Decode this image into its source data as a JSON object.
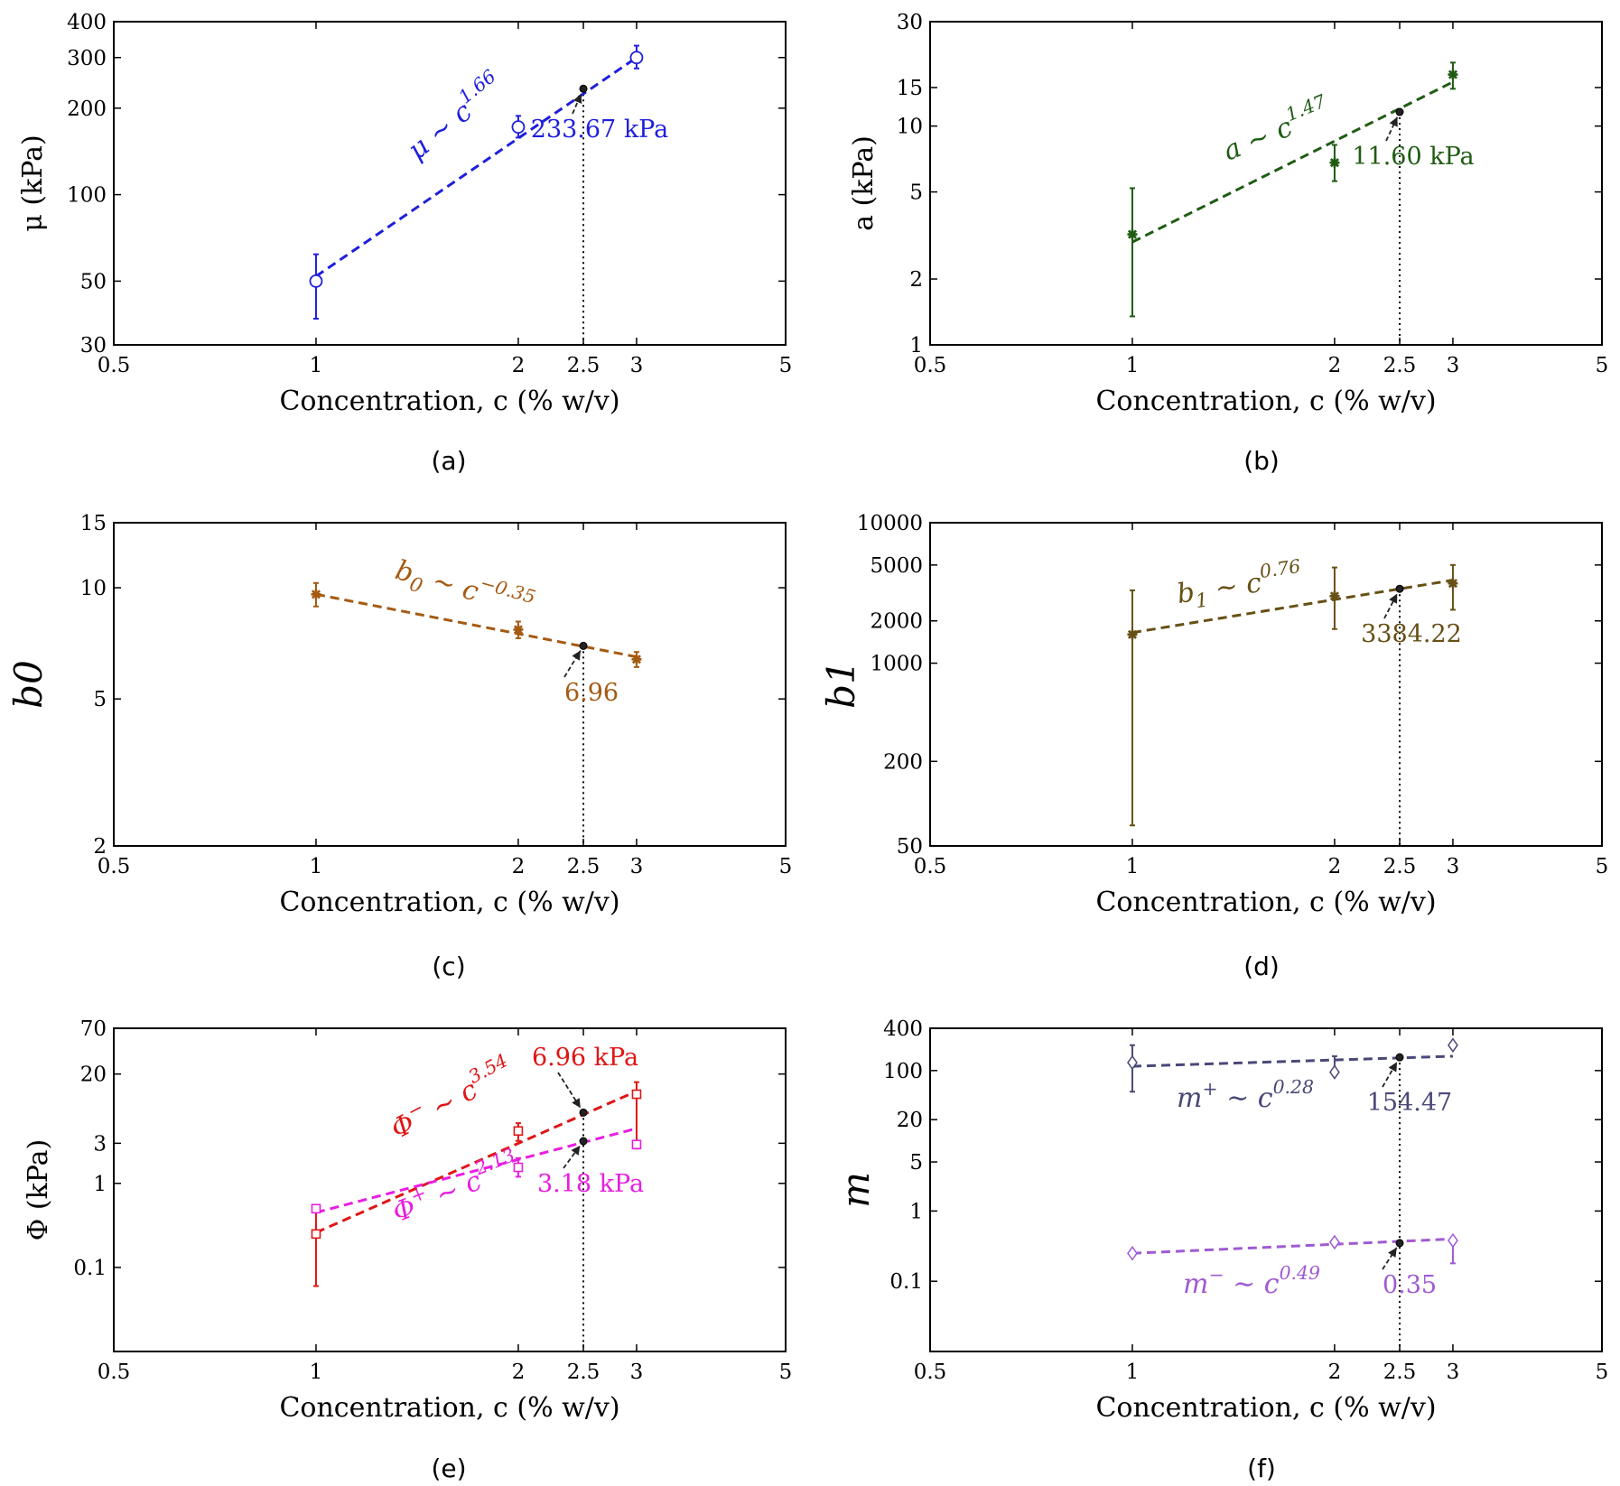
{
  "chart_data": [
    {
      "id": "a",
      "type": "scatter",
      "scale": "loglog",
      "caption": "(a)",
      "xlabel": "Concentration, c (% w/v)",
      "ylabel": "μ (kPa)",
      "xlim": [
        0.5,
        5
      ],
      "ylim": [
        30,
        400
      ],
      "xticks": [
        0.5,
        1,
        2,
        2.5,
        3,
        5
      ],
      "xtick_labels": [
        "0.5",
        "1",
        "2",
        "2.5",
        "3",
        "5"
      ],
      "yticks": [
        30,
        50,
        100,
        200,
        300,
        400
      ],
      "ytick_labels": [
        "30",
        "50",
        "100",
        "200",
        "300",
        "400"
      ],
      "color": "#1f1fdc",
      "series": [
        {
          "name": "μ",
          "marker": "circle",
          "points": [
            {
              "x": 1,
              "y": 50,
              "lo": 37,
              "hi": 62
            },
            {
              "x": 2,
              "y": 172,
              "lo": 158,
              "hi": 188
            },
            {
              "x": 3,
              "y": 300,
              "lo": 275,
              "hi": 330
            }
          ],
          "fit": {
            "exponent": 1.66,
            "x0": 1,
            "x1": 3,
            "y0": 52,
            "y1": 300
          },
          "fit_label": {
            "base": "μ ∼ c",
            "exp": "1.66"
          },
          "estimate": {
            "x": 2.5,
            "y": 233.67,
            "label": "233.67 kPa"
          }
        }
      ]
    },
    {
      "id": "b",
      "type": "scatter",
      "scale": "loglog",
      "caption": "(b)",
      "xlabel": "Concentration, c (% w/v)",
      "ylabel": "a (kPa)",
      "xlim": [
        0.5,
        5
      ],
      "ylim": [
        1,
        30
      ],
      "xticks": [
        0.5,
        1,
        2,
        2.5,
        3,
        5
      ],
      "xtick_labels": [
        "0.5",
        "1",
        "2",
        "2.5",
        "3",
        "5"
      ],
      "yticks": [
        1,
        2,
        5,
        10,
        15,
        30
      ],
      "ytick_labels": [
        "1",
        "2",
        "5",
        "10",
        "15",
        "30"
      ],
      "color": "#1f5c12",
      "series": [
        {
          "name": "a",
          "marker": "star",
          "points": [
            {
              "x": 1,
              "y": 3.2,
              "lo": 1.35,
              "hi": 5.2
            },
            {
              "x": 2,
              "y": 6.8,
              "lo": 5.6,
              "hi": 8.2
            },
            {
              "x": 3,
              "y": 17.2,
              "lo": 14.8,
              "hi": 19.5
            }
          ],
          "fit": {
            "exponent": 1.47,
            "x0": 1,
            "x1": 3,
            "y0": 2.95,
            "y1": 15.9
          },
          "fit_label": {
            "base": "a ∼ c",
            "exp": "1.47"
          },
          "estimate": {
            "x": 2.5,
            "y": 11.6,
            "label": "11.60 kPa"
          }
        }
      ]
    },
    {
      "id": "c",
      "type": "scatter",
      "scale": "loglog",
      "caption": "(c)",
      "xlabel": "Concentration, c (% w/v)",
      "ylabel": "b0",
      "xlim": [
        0.5,
        5
      ],
      "ylim": [
        2,
        15
      ],
      "xticks": [
        0.5,
        1,
        2,
        2.5,
        3,
        5
      ],
      "xtick_labels": [
        "0.5",
        "1",
        "2",
        "2.5",
        "3",
        "5"
      ],
      "yticks": [
        2,
        5,
        10,
        15
      ],
      "ytick_labels": [
        "2",
        "5",
        "10",
        "15"
      ],
      "color": "#a55a12",
      "series": [
        {
          "name": "b0",
          "marker": "star",
          "points": [
            {
              "x": 1,
              "y": 9.6,
              "lo": 8.9,
              "hi": 10.3
            },
            {
              "x": 2,
              "y": 7.7,
              "lo": 7.3,
              "hi": 8.1
            },
            {
              "x": 3,
              "y": 6.4,
              "lo": 6.1,
              "hi": 6.7
            }
          ],
          "fit": {
            "exponent": -0.35,
            "x0": 1,
            "x1": 3,
            "y0": 9.6,
            "y1": 6.5
          },
          "fit_label": {
            "base": "b",
            "sub": "0",
            "mid": " ∼ c",
            "exp": "−0.35"
          },
          "estimate": {
            "x": 2.5,
            "y": 6.96,
            "label": "6.96"
          }
        }
      ]
    },
    {
      "id": "d",
      "type": "scatter",
      "scale": "loglog",
      "caption": "(d)",
      "xlabel": "Concentration, c (% w/v)",
      "ylabel": "b1",
      "xlim": [
        0.5,
        5
      ],
      "ylim": [
        50,
        10000
      ],
      "xticks": [
        0.5,
        1,
        2,
        2.5,
        3,
        5
      ],
      "xtick_labels": [
        "0.5",
        "1",
        "2",
        "2.5",
        "3",
        "5"
      ],
      "yticks": [
        50,
        200,
        1000,
        2000,
        5000,
        10000
      ],
      "ytick_labels": [
        "50",
        "200",
        "1000",
        "2000",
        "5000",
        "10000"
      ],
      "color": "#665015",
      "series": [
        {
          "name": "b1",
          "marker": "star",
          "points": [
            {
              "x": 1,
              "y": 1600,
              "lo": 70,
              "hi": 3300
            },
            {
              "x": 2,
              "y": 3000,
              "lo": 1750,
              "hi": 4800
            },
            {
              "x": 3,
              "y": 3700,
              "lo": 2400,
              "hi": 5000
            }
          ],
          "fit": {
            "exponent": 0.76,
            "x0": 1,
            "x1": 3,
            "y0": 1650,
            "y1": 3900
          },
          "fit_label": {
            "base": "b",
            "sub": "1",
            "mid": " ∼ c",
            "exp": "0.76"
          },
          "estimate": {
            "x": 2.5,
            "y": 3384.22,
            "label": "3384.22"
          }
        }
      ]
    },
    {
      "id": "e",
      "type": "scatter",
      "scale": "loglog",
      "caption": "(e)",
      "xlabel": "Concentration, c (% w/v)",
      "ylabel": "Φ (kPa)",
      "xlim": [
        0.5,
        5
      ],
      "ylim": [
        0.01,
        70
      ],
      "xticks": [
        0.5,
        1,
        2,
        2.5,
        3,
        5
      ],
      "xtick_labels": [
        "0.5",
        "1",
        "2",
        "2.5",
        "3",
        "5"
      ],
      "yticks": [
        0.1,
        1,
        3,
        20,
        70
      ],
      "ytick_labels": [
        "0.1",
        "1",
        "3",
        "20",
        "70"
      ],
      "series": [
        {
          "name": "Φ−",
          "marker": "square",
          "color": "#e01515",
          "points": [
            {
              "x": 1,
              "y": 0.25,
              "lo": 0.06,
              "hi": 0.5
            },
            {
              "x": 2,
              "y": 4.2,
              "lo": 3.2,
              "hi": 5.2
            },
            {
              "x": 3,
              "y": 11.5,
              "lo": 2.6,
              "hi": 16
            }
          ],
          "fit": {
            "exponent": 3.54,
            "x0": 1,
            "x1": 3,
            "y0": 0.26,
            "y1": 12.5
          },
          "fit_label": {
            "base": "Φ",
            "sup1": "−",
            "mid": " ∼ c",
            "exp": "3.54"
          },
          "estimate": {
            "x": 2.5,
            "y": 6.96,
            "label": "6.96 kPa"
          }
        },
        {
          "name": "Φ+",
          "marker": "square",
          "color": "#e81ee0",
          "points": [
            {
              "x": 1,
              "y": 0.5,
              "lo": 0.46,
              "hi": 0.54
            },
            {
              "x": 2,
              "y": 1.55,
              "lo": 1.2,
              "hi": 2.0
            },
            {
              "x": 3,
              "y": 2.9,
              "lo": 2.6,
              "hi": 3.2
            }
          ],
          "fit": {
            "exponent": 2.13,
            "x0": 1,
            "x1": 3,
            "y0": 0.45,
            "y1": 4.5
          },
          "fit_label": {
            "base": "Φ",
            "sup1": "+",
            "mid": " ∼ c",
            "exp": "2.13"
          },
          "estimate": {
            "x": 2.5,
            "y": 3.18,
            "label": "3.18 kPa"
          }
        }
      ]
    },
    {
      "id": "f",
      "type": "scatter",
      "scale": "loglog",
      "caption": "(f)",
      "xlabel": "Concentration, c (% w/v)",
      "ylabel": "m",
      "xlim": [
        0.5,
        5
      ],
      "ylim": [
        0.01,
        400
      ],
      "xticks": [
        0.5,
        1,
        2,
        2.5,
        3,
        5
      ],
      "xtick_labels": [
        "0.5",
        "1",
        "2",
        "2.5",
        "3",
        "5"
      ],
      "yticks": [
        0.1,
        1,
        5,
        20,
        100,
        400
      ],
      "ytick_labels": [
        "0.1",
        "1",
        "5",
        "20",
        "100",
        "400"
      ],
      "series": [
        {
          "name": "m+",
          "marker": "diamond",
          "color": "#4a4878",
          "points": [
            {
              "x": 1,
              "y": 130,
              "lo": 50,
              "hi": 230
            },
            {
              "x": 2,
              "y": 95,
              "lo": 95,
              "hi": 160
            },
            {
              "x": 3,
              "y": 230,
              "lo": 230,
              "hi": 230
            }
          ],
          "fit": {
            "exponent": 0.28,
            "x0": 1,
            "x1": 3,
            "y0": 115,
            "y1": 160
          },
          "fit_label": {
            "base": "m",
            "sup1": "+",
            "mid": " ∼ c",
            "exp": "0.28"
          },
          "estimate": {
            "x": 2.5,
            "y": 154.47,
            "label": "154.47"
          }
        },
        {
          "name": "m−",
          "marker": "diamond",
          "color": "#a05ad2",
          "points": [
            {
              "x": 1,
              "y": 0.25,
              "lo": 0.25,
              "hi": 0.25
            },
            {
              "x": 2,
              "y": 0.36,
              "lo": 0.36,
              "hi": 0.36
            },
            {
              "x": 3,
              "y": 0.38,
              "lo": 0.18,
              "hi": 0.38
            }
          ],
          "fit": {
            "exponent": 0.49,
            "x0": 1,
            "x1": 3,
            "y0": 0.25,
            "y1": 0.4
          },
          "fit_label": {
            "base": "m",
            "sup1": "−",
            "mid": " ∼ c",
            "exp": "0.49"
          },
          "estimate": {
            "x": 2.5,
            "y": 0.35,
            "label": "0.35"
          }
        }
      ]
    }
  ]
}
